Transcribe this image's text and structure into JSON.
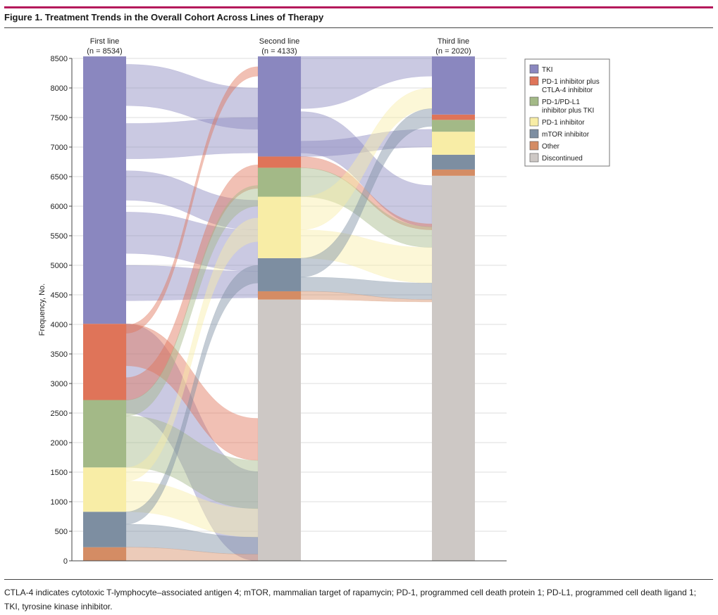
{
  "figure": {
    "title": "Figure 1. Treatment Trends in the Overall Cohort Across Lines of Therapy",
    "caption": "CTLA-4 indicates cytotoxic T-lymphocyte–associated antigen 4; mTOR, mammalian target of rapamycin; PD-1, programmed cell death protein 1; PD-L1, programmed cell death ligand 1; TKI, tyrosine kinase inhibitor."
  },
  "chart_data": {
    "type": "alluvial",
    "ylabel": "Frequency, No.",
    "ylim": [
      0,
      8500
    ],
    "yticks": [
      0,
      500,
      1000,
      1500,
      2000,
      2500,
      3000,
      3500,
      4000,
      4500,
      5000,
      5500,
      6000,
      6500,
      7000,
      7500,
      8000,
      8500
    ],
    "grid": true,
    "legend_position": "top-right",
    "categories": [
      {
        "key": "tki",
        "label": "TKI",
        "color": "#8a87bf"
      },
      {
        "key": "pd1ctla4",
        "label": "PD-1 inhibitor plus CTLA-4 inhibitor",
        "label_lines": [
          "PD-1 inhibitor plus",
          "CTLA-4 inhibitor"
        ],
        "color": "#df7459"
      },
      {
        "key": "pdl1tki",
        "label": "PD-1/PD-L1 inhibitor plus TKI",
        "label_lines": [
          "PD-1/PD-L1",
          "inhibitor plus TKI"
        ],
        "color": "#a3b987"
      },
      {
        "key": "pd1",
        "label": "PD-1 inhibitor",
        "color": "#f8eda6"
      },
      {
        "key": "mtor",
        "label": "mTOR inhibitor",
        "color": "#7d8ea1"
      },
      {
        "key": "other",
        "label": "Other",
        "color": "#d48c64"
      },
      {
        "key": "disc",
        "label": "Discontinued",
        "color": "#cdc8c5"
      }
    ],
    "lines": [
      {
        "label": "First line",
        "n_label": "(n = 8534)",
        "segments": [
          {
            "cat": "other",
            "from": 0,
            "to": 230
          },
          {
            "cat": "mtor",
            "from": 230,
            "to": 830
          },
          {
            "cat": "pd1",
            "from": 830,
            "to": 1580
          },
          {
            "cat": "pdl1tki",
            "from": 1580,
            "to": 2720
          },
          {
            "cat": "pd1ctla4",
            "from": 2720,
            "to": 4010
          },
          {
            "cat": "tki",
            "from": 4010,
            "to": 8534
          }
        ]
      },
      {
        "label": "Second line",
        "n_label": "(n = 4133)",
        "segments": [
          {
            "cat": "disc",
            "from": 0,
            "to": 4420
          },
          {
            "cat": "other",
            "from": 4420,
            "to": 4560
          },
          {
            "cat": "mtor",
            "from": 4560,
            "to": 5120
          },
          {
            "cat": "pd1",
            "from": 5120,
            "to": 6160
          },
          {
            "cat": "pdl1tki",
            "from": 6160,
            "to": 6650
          },
          {
            "cat": "pd1ctla4",
            "from": 6650,
            "to": 6840
          },
          {
            "cat": "tki",
            "from": 6840,
            "to": 8534
          }
        ]
      },
      {
        "label": "Third line",
        "n_label": "(n = 2020)",
        "segments": [
          {
            "cat": "disc",
            "from": 0,
            "to": 6514
          },
          {
            "cat": "other",
            "from": 6514,
            "to": 6620
          },
          {
            "cat": "mtor",
            "from": 6620,
            "to": 6870
          },
          {
            "cat": "pd1",
            "from": 6870,
            "to": 7260
          },
          {
            "cat": "pdl1tki",
            "from": 7260,
            "to": 7460
          },
          {
            "cat": "pd1ctla4",
            "from": 7460,
            "to": 7550
          },
          {
            "cat": "tki",
            "from": 7550,
            "to": 8534
          }
        ]
      }
    ],
    "flows_1_2": [
      {
        "cat": "tki",
        "a": [
          2500,
          4010
        ],
        "b": [
          0,
          1510
        ]
      },
      {
        "cat": "tki",
        "a": [
          7700,
          8400
        ],
        "b": [
          7300,
          8000
        ]
      },
      {
        "cat": "tki",
        "a": [
          6800,
          7400
        ],
        "b": [
          6900,
          7500
        ]
      },
      {
        "cat": "tki",
        "a": [
          6100,
          6600
        ],
        "b": [
          5600,
          6100
        ]
      },
      {
        "cat": "tki",
        "a": [
          5200,
          5900
        ],
        "b": [
          4900,
          5600
        ]
      },
      {
        "cat": "tki",
        "a": [
          4400,
          5000
        ],
        "b": [
          4450,
          4900
        ]
      },
      {
        "cat": "pd1ctla4",
        "a": [
          3300,
          4010
        ],
        "b": [
          1700,
          2410
        ]
      },
      {
        "cat": "pd1ctla4",
        "a": [
          2720,
          3100
        ],
        "b": [
          6300,
          6700
        ]
      },
      {
        "cat": "pd1ctla4",
        "a": [
          3850,
          3990
        ],
        "b": [
          8200,
          8360
        ]
      },
      {
        "cat": "pdl1tki",
        "a": [
          1580,
          2450
        ],
        "b": [
          880,
          1700
        ]
      },
      {
        "cat": "pdl1tki",
        "a": [
          2450,
          2720
        ],
        "b": [
          6000,
          6350
        ]
      },
      {
        "cat": "pd1",
        "a": [
          830,
          1350
        ],
        "b": [
          400,
          880
        ]
      },
      {
        "cat": "pd1",
        "a": [
          1350,
          1580
        ],
        "b": [
          5400,
          5800
        ]
      },
      {
        "cat": "mtor",
        "a": [
          230,
          620
        ],
        "b": [
          110,
          400
        ]
      },
      {
        "cat": "mtor",
        "a": [
          620,
          830
        ],
        "b": [
          4700,
          5000
        ]
      },
      {
        "cat": "other",
        "a": [
          0,
          230
        ],
        "b": [
          0,
          110
        ]
      }
    ],
    "flows_2_3": [
      {
        "cat": "tki",
        "a": [
          7650,
          8534
        ],
        "b": [
          8200,
          8534
        ]
      },
      {
        "cat": "tki",
        "a": [
          6900,
          7600
        ],
        "b": [
          5650,
          6350
        ]
      },
      {
        "cat": "tki",
        "a": [
          6840,
          7100
        ],
        "b": [
          7000,
          7300
        ]
      },
      {
        "cat": "pd1ctla4",
        "a": [
          6650,
          6840
        ],
        "b": [
          5600,
          5700
        ]
      },
      {
        "cat": "pdl1tki",
        "a": [
          6160,
          6650
        ],
        "b": [
          5300,
          5650
        ]
      },
      {
        "cat": "pd1",
        "a": [
          5600,
          6160
        ],
        "b": [
          7650,
          8000
        ]
      },
      {
        "cat": "pd1",
        "a": [
          5120,
          5600
        ],
        "b": [
          4700,
          5300
        ]
      },
      {
        "cat": "mtor",
        "a": [
          4800,
          5120
        ],
        "b": [
          7350,
          7650
        ]
      },
      {
        "cat": "mtor",
        "a": [
          4560,
          4800
        ],
        "b": [
          4420,
          4700
        ]
      },
      {
        "cat": "other",
        "a": [
          4420,
          4560
        ],
        "b": [
          4380,
          4420
        ]
      }
    ]
  }
}
